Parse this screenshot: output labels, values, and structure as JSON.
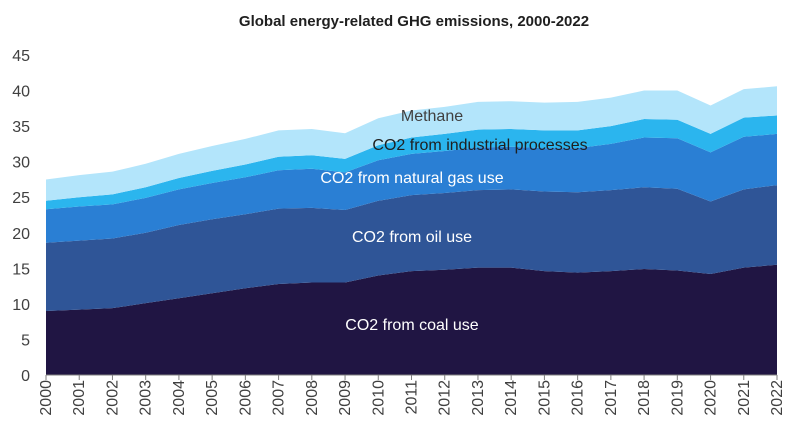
{
  "chart_data": {
    "type": "area",
    "stacked": true,
    "title": "Global energy-related GHG emissions, 2000-2022",
    "xlabel": "",
    "ylabel": "",
    "ylim": [
      0,
      45
    ],
    "yticks": [
      0,
      5,
      10,
      15,
      20,
      25,
      30,
      35,
      40,
      45
    ],
    "grid": false,
    "legend": "inline labels",
    "x": [
      "2000",
      "2001",
      "2002",
      "2003",
      "2004",
      "2005",
      "2006",
      "2007",
      "2008",
      "2009",
      "2010",
      "2011",
      "2012",
      "2013",
      "2014",
      "2015",
      "2016",
      "2017",
      "2018",
      "2019",
      "2020",
      "2021",
      "2022"
    ],
    "series": [
      {
        "name": "CO2 from coal use",
        "color": "#201543",
        "values": [
          9.0,
          9.2,
          9.4,
          10.1,
          10.8,
          11.5,
          12.2,
          12.8,
          13.0,
          13.0,
          14.0,
          14.6,
          14.8,
          15.1,
          15.1,
          14.6,
          14.4,
          14.6,
          14.9,
          14.7,
          14.2,
          15.1,
          15.5
        ]
      },
      {
        "name": "CO2 from oil use",
        "color": "#2f5597",
        "values": [
          9.6,
          9.7,
          9.8,
          9.9,
          10.3,
          10.4,
          10.4,
          10.6,
          10.5,
          10.2,
          10.5,
          10.7,
          10.8,
          10.9,
          11.0,
          11.2,
          11.3,
          11.4,
          11.5,
          11.5,
          10.2,
          11.0,
          11.2
        ]
      },
      {
        "name": "CO2 from natural gas use",
        "color": "#2a7fd4",
        "values": [
          4.7,
          4.8,
          4.8,
          4.9,
          5.0,
          5.1,
          5.2,
          5.4,
          5.5,
          5.3,
          5.7,
          5.8,
          5.9,
          6.0,
          6.0,
          6.1,
          6.2,
          6.5,
          7.0,
          7.1,
          6.9,
          7.4,
          7.2
        ]
      },
      {
        "name": "CO2 from industrial processes",
        "color": "#2bb5ee",
        "values": [
          1.2,
          1.3,
          1.4,
          1.5,
          1.6,
          1.7,
          1.8,
          1.9,
          1.9,
          1.9,
          2.1,
          2.3,
          2.4,
          2.5,
          2.5,
          2.5,
          2.5,
          2.5,
          2.6,
          2.6,
          2.6,
          2.7,
          2.6
        ]
      },
      {
        "name": "Methane",
        "color": "#b3e5fb",
        "values": [
          3.0,
          3.1,
          3.2,
          3.3,
          3.4,
          3.5,
          3.6,
          3.7,
          3.7,
          3.6,
          3.8,
          3.8,
          3.8,
          3.9,
          3.9,
          3.9,
          4.0,
          4.0,
          4.0,
          4.1,
          4.0,
          4.0,
          4.1
        ]
      }
    ]
  }
}
